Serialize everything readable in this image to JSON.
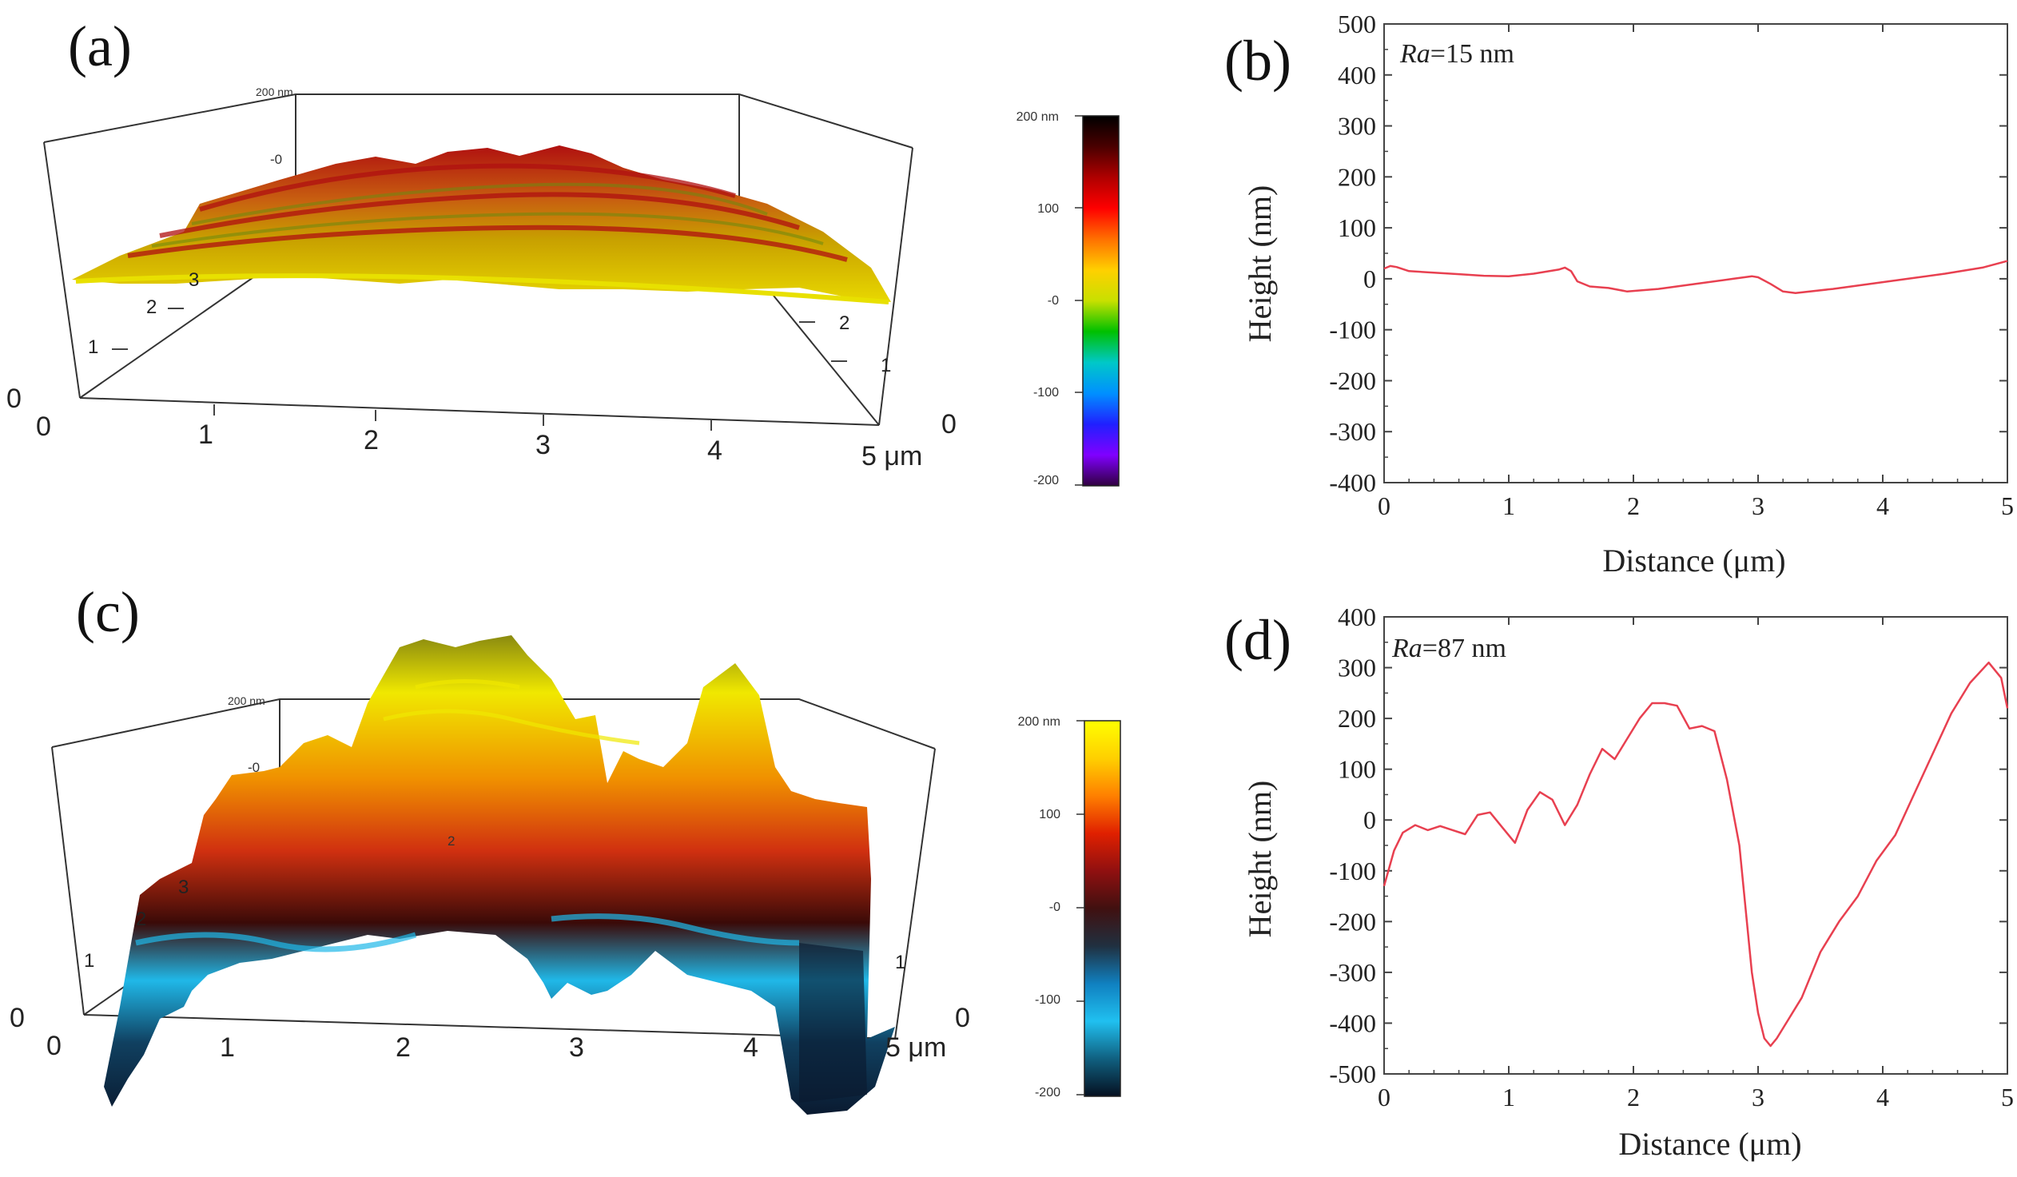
{
  "panels": {
    "a": {
      "label": "(a)"
    },
    "b": {
      "label": "(b)"
    },
    "c": {
      "label": "(c)"
    },
    "d": {
      "label": "(d)"
    }
  },
  "surface_a": {
    "box_top_label": "200 nm",
    "inner_label": "-0",
    "y_ticks": [
      "1",
      "2",
      "3"
    ],
    "right_ticks": [
      "1",
      "2"
    ],
    "x_ticks": [
      "0",
      "1",
      "2",
      "3",
      "4",
      "5 μm"
    ],
    "left_zero": "0",
    "right_zero": "0",
    "colors": {
      "high": "#b01010",
      "mid": "#c8a000",
      "low": "#e8d800",
      "accent": "#6a8a10"
    },
    "colorbar": {
      "labels": [
        "200 nm",
        "100",
        "-0",
        "-100",
        "-200"
      ],
      "stops": [
        "#000000",
        "#4a0000",
        "#b00000",
        "#ff0000",
        "#ff7000",
        "#ffd000",
        "#c8e000",
        "#00c000",
        "#00c8c8",
        "#0090ff",
        "#2020ff",
        "#8000ff",
        "#300040"
      ]
    }
  },
  "surface_c": {
    "box_top_label": "200 nm",
    "inner_label": "-0",
    "mid_label": "2",
    "y_ticks": [
      "1",
      "2",
      "3"
    ],
    "right_ticks": [
      "1"
    ],
    "x_ticks": [
      "0",
      "1",
      "2",
      "3",
      "4",
      "5 μm"
    ],
    "left_zero": "0",
    "right_zero": "0",
    "colors": {
      "peak": "#f0e800",
      "top": "#7a7a10",
      "mid": "#d03010",
      "dark": "#3a0a08",
      "cyan": "#20b8e8",
      "base": "#0a1a30"
    },
    "colorbar": {
      "labels": [
        "200 nm",
        "100",
        "-0",
        "-100",
        "-200"
      ],
      "stops": [
        "#ffff00",
        "#ffd000",
        "#ff8000",
        "#e02000",
        "#901010",
        "#401010",
        "#203040",
        "#1080c0",
        "#20c0f0",
        "#106080",
        "#051020"
      ]
    }
  },
  "chart_data": [
    {
      "type": "line",
      "panel": "(b)",
      "annotation_italic": "Ra",
      "annotation_rest": "=15 nm",
      "xlabel": "Distance (μm)",
      "ylabel": "Height (nm)",
      "xlim": [
        0,
        5
      ],
      "ylim": [
        -400,
        500
      ],
      "x_ticks": [
        "0",
        "1",
        "2",
        "3",
        "4",
        "5"
      ],
      "y_ticks": [
        "500",
        "400",
        "300",
        "200",
        "100",
        "0",
        "-100",
        "-200",
        "-300",
        "-400"
      ],
      "line_color": "#e84050",
      "series": [
        {
          "name": "profile",
          "x": [
            0,
            0.05,
            0.1,
            0.2,
            0.4,
            0.6,
            0.8,
            1.0,
            1.2,
            1.4,
            1.45,
            1.5,
            1.55,
            1.65,
            1.8,
            1.95,
            2.2,
            2.5,
            2.8,
            2.95,
            3.0,
            3.1,
            3.2,
            3.3,
            3.6,
            3.9,
            4.2,
            4.5,
            4.8,
            5.0
          ],
          "y": [
            20,
            25,
            23,
            15,
            12,
            9,
            6,
            5,
            10,
            18,
            22,
            15,
            -5,
            -15,
            -18,
            -25,
            -20,
            -10,
            0,
            5,
            3,
            -10,
            -25,
            -28,
            -20,
            -10,
            0,
            10,
            22,
            35
          ]
        }
      ]
    },
    {
      "type": "line",
      "panel": "(d)",
      "annotation_italic": "Ra",
      "annotation_rest": "=87 nm",
      "xlabel": "Distance (μm)",
      "ylabel": "Height (nm)",
      "xlim": [
        0,
        5
      ],
      "ylim": [
        -500,
        400
      ],
      "x_ticks": [
        "0",
        "1",
        "2",
        "3",
        "4",
        "5"
      ],
      "y_ticks": [
        "400",
        "300",
        "200",
        "100",
        "0",
        "-100",
        "-200",
        "-300",
        "-400",
        "-500"
      ],
      "line_color": "#e84050",
      "series": [
        {
          "name": "profile",
          "x": [
            0,
            0.08,
            0.15,
            0.25,
            0.35,
            0.45,
            0.55,
            0.65,
            0.75,
            0.85,
            0.95,
            1.05,
            1.15,
            1.25,
            1.35,
            1.45,
            1.55,
            1.65,
            1.75,
            1.85,
            1.95,
            2.05,
            2.15,
            2.25,
            2.35,
            2.45,
            2.55,
            2.65,
            2.75,
            2.85,
            2.95,
            3.0,
            3.05,
            3.1,
            3.15,
            3.25,
            3.35,
            3.5,
            3.65,
            3.8,
            3.95,
            4.1,
            4.25,
            4.4,
            4.55,
            4.7,
            4.85,
            4.95,
            5.0
          ],
          "y": [
            -130,
            -60,
            -25,
            -10,
            -20,
            -12,
            -20,
            -28,
            10,
            15,
            -15,
            -45,
            20,
            55,
            40,
            -10,
            30,
            90,
            140,
            120,
            160,
            200,
            230,
            230,
            225,
            180,
            185,
            175,
            80,
            -50,
            -300,
            -380,
            -430,
            -445,
            -430,
            -390,
            -350,
            -260,
            -200,
            -150,
            -80,
            -30,
            50,
            130,
            210,
            270,
            310,
            280,
            220
          ]
        }
      ]
    }
  ]
}
